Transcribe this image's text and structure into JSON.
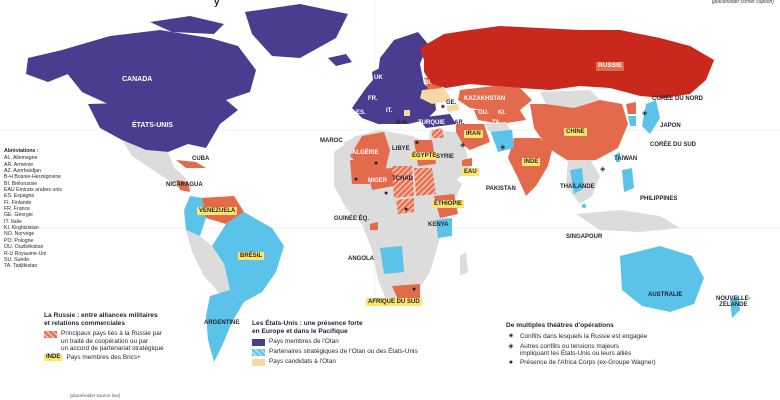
{
  "title_fragment": "y",
  "corner_caption": "(placeholder corner caption)",
  "colors": {
    "ocean": "#ffffff",
    "neutral": "#dcdcdc",
    "russia": "#c8291c",
    "russia_partner": "#e46a4c",
    "nato": "#4a3d8f",
    "partner": "#5bc3ea",
    "candidate": "#f6d9a3",
    "brics_tag": "#ffe36b"
  },
  "countries": {
    "canada": "CANADA",
    "usa": "ÉTATS-UNIS",
    "russia": "RUSSIE",
    "cuba": "CUBA",
    "nicaragua": "NICARAGUA",
    "venezuela": "VENEZUELA",
    "bresil": "BRÉSIL",
    "argentine": "ARGENTINE",
    "uk": "UK",
    "fr": "FR.",
    "es": "ES.",
    "it": "IT.",
    "bi": "BI.",
    "ge": "GE.",
    "az": "AZ.",
    "ar": "AR.",
    "bh": "B-H",
    "maroc": "MAROC",
    "algerie": "ALGÉRIE",
    "libye": "LIBYE",
    "egypte": "ÉGYPTE",
    "syrie": "SYRIE",
    "turquie": "TURQUIE",
    "iran": "IRAN",
    "eau": "EAU",
    "kazakhstan": "KAZAKHSTAN",
    "ou": "OU.",
    "ki": "KI.",
    "ta": "TA.",
    "pakistan": "PAKISTAN",
    "inde": "INDE",
    "chine": "CHINE",
    "coree_nord": "CORÉE DU NORD",
    "coree_sud": "CORÉE DU SUD",
    "japon": "JAPON",
    "taiwan": "TAÏWAN",
    "thailande": "THAÏLANDE",
    "philippines": "PHILIPPINES",
    "singapour": "SINGAPOUR",
    "australie": "AUSTRALIE",
    "nz": "NOUVELLE-\nZÉLANDE",
    "niger": "NIGER",
    "tchad": "TCHAD",
    "ethiopie": "ÉTHIOPIE",
    "kenya": "KENYA",
    "guinee": "GUINÉE ÉQ.",
    "angola": "ANGOLA",
    "afrique_sud": "AFRIQUE DU SUD"
  },
  "abbreviations": {
    "title": "Abréviations :",
    "items": [
      "AL. Allemagne",
      "AR. Arménie",
      "AZ. Azerbaïdjan",
      "B-H Bosnie-Herzégovine",
      "BI. Biélorussie",
      "EAU Émirats arabes unis",
      "ES. Espagne",
      "FI. Finlande",
      "FR. France",
      "GE. Géorgie",
      "IT. Italie",
      "KI. Kirghizistan",
      "NO. Norvège",
      "PO. Pologne",
      "OU. Ouzbékistan",
      "R-U Royaume-Uni",
      "SU. Suède",
      "TA. Tadjikistan"
    ]
  },
  "legend_russia": {
    "title": "La Russie : entre alliances militaires\net relations commerciales",
    "partners": "Principaux pays liés à la Russie par\nun traité de coopération ou par\nun accord de partenariat stratégique",
    "brics_tag": "INDE",
    "brics": "Pays membres des Brics+"
  },
  "legend_usa": {
    "title": "Les États-Unis : une présence forte\nen Europe et dans le Pacifique",
    "nato": "Pays membres de l'Otan",
    "partners": "Partenaires stratégiques de l'Otan ou des États-Unis",
    "candidates": "Pays candidats à l'Otan"
  },
  "legend_ops": {
    "title": "De multiples théâtres d'opérations",
    "russia_conflict": "Conflits dans lesquels la Russie est engagée",
    "other_conflicts": "Autres conflits ou tensions majeurs\nimpliquant les États-Unis ou leurs alliés",
    "africa_corps": "Présence de l'Africa Corps (ex-Groupe Wagner)"
  },
  "source": "(placeholder source line)"
}
